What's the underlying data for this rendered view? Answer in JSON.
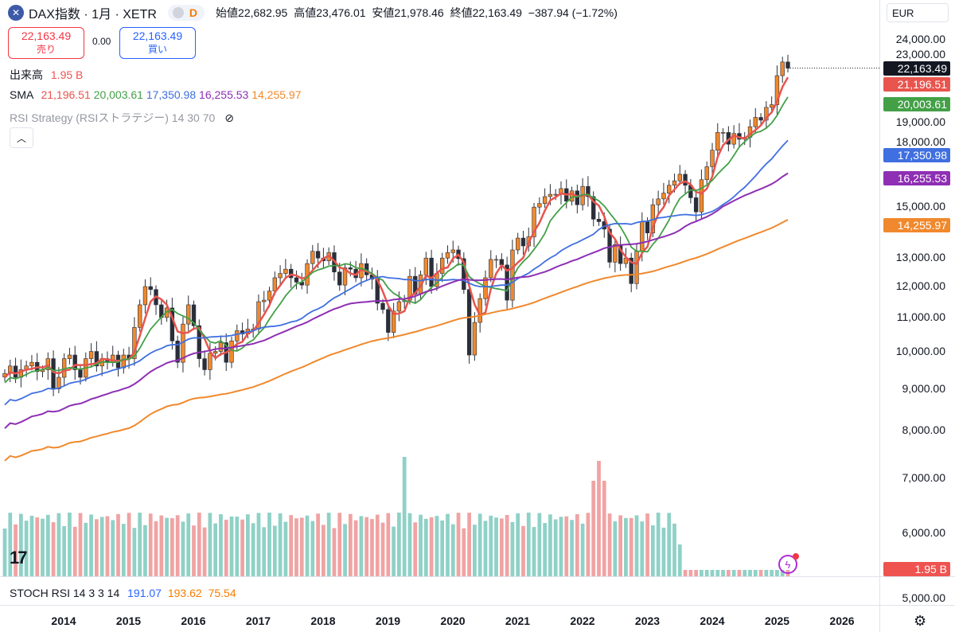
{
  "header": {
    "title": "DAX指数 · 1月 · XETR",
    "icon": "x-circle-icon",
    "badge": "D",
    "ohlc": [
      {
        "label": "始値",
        "value": "22,682.95"
      },
      {
        "label": "高値",
        "value": "23,476.01"
      },
      {
        "label": "安値",
        "value": "21,978.46"
      },
      {
        "label": "終値",
        "value": "22,163.49"
      },
      {
        "label": "",
        "value": "−387.94 (−1.72%)"
      }
    ]
  },
  "trade": {
    "sell_price": "22,163.49",
    "sell_label": "売り",
    "spread": "0.00",
    "buy_price": "22,163.49",
    "buy_label": "買い"
  },
  "legend": {
    "volume_label": "出来高",
    "volume_value": "1.95 B",
    "sma_label": "SMA",
    "sma_values": [
      {
        "value": "21,196.51",
        "color": "#e8554e"
      },
      {
        "value": "20,003.61",
        "color": "#43a047"
      },
      {
        "value": "17,350.98",
        "color": "#3f6fe0"
      },
      {
        "value": "16,255.53",
        "color": "#8e2fb4"
      },
      {
        "value": "14,255.97",
        "color": "#f0892d"
      }
    ],
    "rsi_strategy": "RSI Strategy (RSIストラテジー) 14 30 70",
    "rsi_icon": "eye-off-icon"
  },
  "currency": "EUR",
  "price_axis": [
    "24,000.00",
    "23,000.00",
    "19,000.00",
    "18,000.00",
    "15,000.00",
    "13,000.00",
    "12,000.00",
    "11,000.00",
    "10,000.00",
    "9,000.00",
    "8,000.00",
    "7,000.00",
    "6,000.00",
    "5,000.00"
  ],
  "price_tags": [
    {
      "text": "22,163.49",
      "color": "#131722"
    },
    {
      "text": "21,196.51",
      "color": "#e8554e"
    },
    {
      "text": "20,003.61",
      "color": "#43a047"
    },
    {
      "text": "17,350.98",
      "color": "#3f6fe0"
    },
    {
      "text": "16,255.53",
      "color": "#8e2fb4"
    },
    {
      "text": "14,255.97",
      "color": "#f0892d"
    },
    {
      "text": "1.95 B",
      "color": "#ef5350"
    }
  ],
  "years": [
    "2014",
    "2015",
    "2016",
    "2017",
    "2018",
    "2019",
    "2020",
    "2021",
    "2022",
    "2023",
    "2024",
    "2025",
    "2026"
  ],
  "stoch": {
    "label": "STOCH RSI 14 3 3 14",
    "k": "191.07",
    "d": "193.62",
    "third": "75.54",
    "k_color": "#2962ff",
    "d_color": "#f57c00",
    "third_color": "#f57c00"
  },
  "chart_data": {
    "type": "candlestick",
    "interval": "1M",
    "symbol": "DAX",
    "y_scale": "log",
    "ylim": [
      5000,
      24000
    ],
    "series_note_removed": true,
    "closes": [
      9400,
      9600,
      9300,
      9500,
      9600,
      9700,
      9450,
      9500,
      9800,
      9000,
      9300,
      9800,
      9900,
      9500,
      9300,
      9800,
      10000,
      9600,
      9800,
      9700,
      9900,
      9550,
      9900,
      9800,
      10700,
      11400,
      12000,
      11900,
      11400,
      11000,
      11300,
      10300,
      9700,
      10800,
      11400,
      10750,
      9800,
      9500,
      9950,
      10000,
      10250,
      9700,
      10300,
      10600,
      10500,
      10650,
      10650,
      11500,
      11550,
      11850,
      12300,
      12450,
      12600,
      12300,
      12150,
      12050,
      12800,
      13250,
      13000,
      12900,
      13200,
      12500,
      12050,
      12650,
      12600,
      12300,
      12800,
      12400,
      12250,
      11450,
      11250,
      10550,
      11200,
      11500,
      11550,
      12350,
      11750,
      12400,
      13000,
      12000,
      12450,
      13000,
      13200,
      13300,
      12980,
      11900,
      9900,
      10850,
      11600,
      12300,
      12950,
      12950,
      12750,
      11550,
      13300,
      13750,
      13450,
      13800,
      15000,
      15150,
      15450,
      15550,
      15550,
      15800,
      15250,
      15700,
      15100,
      15900,
      15450,
      14500,
      14400,
      14100,
      12850,
      13500,
      12800,
      13000,
      12100,
      13250,
      14400,
      13950,
      15100,
      15350,
      15600,
      15950,
      16150,
      16450,
      15950,
      15400,
      14800,
      16200,
      16800,
      17600,
      18500,
      18500,
      17900,
      18450,
      18150,
      18250,
      18800,
      19300,
      19150,
      19850,
      20000,
      21700,
      22550,
      22163
    ],
    "sma": [
      {
        "period_label": "SMA1",
        "last": 21196.51
      },
      {
        "period_label": "SMA2",
        "last": 20003.61
      },
      {
        "period_label": "SMA3",
        "last": 17350.98
      },
      {
        "period_label": "SMA4",
        "last": 16255.53
      },
      {
        "period_label": "SMA5",
        "last": 14255.97
      }
    ],
    "last_close": 22163.49,
    "volume_last": "1.95 B"
  }
}
